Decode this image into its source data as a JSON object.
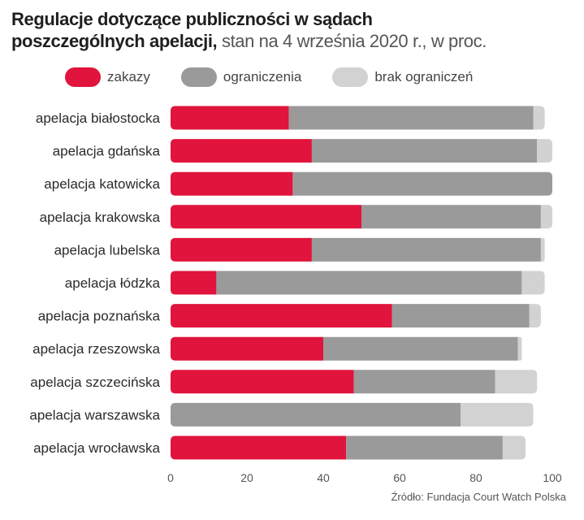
{
  "title_bold_line1": "Regulacje dotyczące publiczności w sądach",
  "title_bold_line2": "poszczególnych apelacji,",
  "title_light": " stan na 4 września 2020 r., w proc.",
  "source": "Źródło: Fundacja Court Watch Polska",
  "colors": {
    "zakazy": "#e0143c",
    "ograniczenia": "#9a9a9a",
    "brak": "#d2d2d2"
  },
  "chart_data": {
    "type": "bar",
    "orientation": "horizontal",
    "stacked": true,
    "title": "Regulacje dotyczące publiczności w sądach poszczególnych apelacji, stan na 4 września 2020 r., w proc.",
    "categories": [
      "apelacja białostocka",
      "apelacja gdańska",
      "apelacja katowicka",
      "apelacja krakowska",
      "apelacja lubelska",
      "apelacja łódzka",
      "apelacja poznańska",
      "apelacja rzeszowska",
      "apelacja szczecińska",
      "apelacja warszawska",
      "apelacja wrocławska"
    ],
    "series": [
      {
        "key": "zakazy",
        "name": "zakazy",
        "values": [
          31,
          37,
          32,
          50,
          37,
          12,
          58,
          40,
          48,
          0,
          46
        ]
      },
      {
        "key": "ograniczenia",
        "name": "ograniczenia",
        "values": [
          64,
          59,
          68,
          47,
          60,
          80,
          36,
          51,
          37,
          76,
          41
        ]
      },
      {
        "key": "brak",
        "name": "brak ograniczeń",
        "values": [
          3,
          4,
          0,
          3,
          1,
          6,
          3,
          1,
          11,
          19,
          6
        ]
      }
    ],
    "xlim": [
      0,
      100
    ],
    "xticks": [
      "0",
      "20",
      "40",
      "60",
      "80",
      "100"
    ],
    "grid": false,
    "legend": "top"
  }
}
